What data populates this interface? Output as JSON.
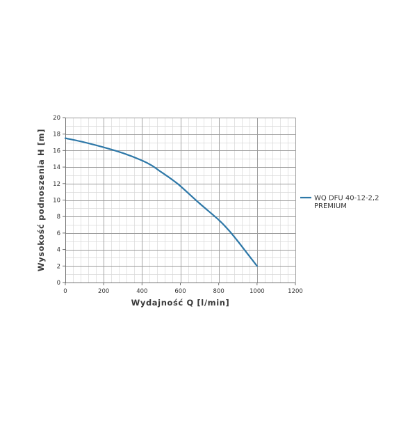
{
  "chart_data": {
    "type": "line",
    "title": "",
    "xlabel": "Wydajność Q [l/min]",
    "ylabel": "Wysokość podnoszenia H [m]",
    "xlim": [
      0,
      1200
    ],
    "ylim": [
      0,
      20
    ],
    "xticks": [
      0,
      200,
      400,
      600,
      800,
      1000,
      1200
    ],
    "yticks": [
      0,
      2,
      4,
      6,
      8,
      10,
      12,
      14,
      16,
      18,
      20
    ],
    "x_minor_step": 40,
    "y_minor_step": 1,
    "grid": true,
    "legend_position": "right",
    "series": [
      {
        "name": "WQ DFU 40-12-2,2\nPREMIUM",
        "color": "#2e78a8",
        "x": [
          0,
          100,
          200,
          300,
          400,
          450,
          500,
          550,
          600,
          700,
          800,
          850,
          900,
          950,
          1000
        ],
        "y": [
          17.5,
          17.0,
          16.4,
          15.7,
          14.8,
          14.2,
          13.4,
          12.6,
          11.7,
          9.6,
          7.6,
          6.4,
          5.0,
          3.5,
          2.0
        ]
      }
    ]
  }
}
